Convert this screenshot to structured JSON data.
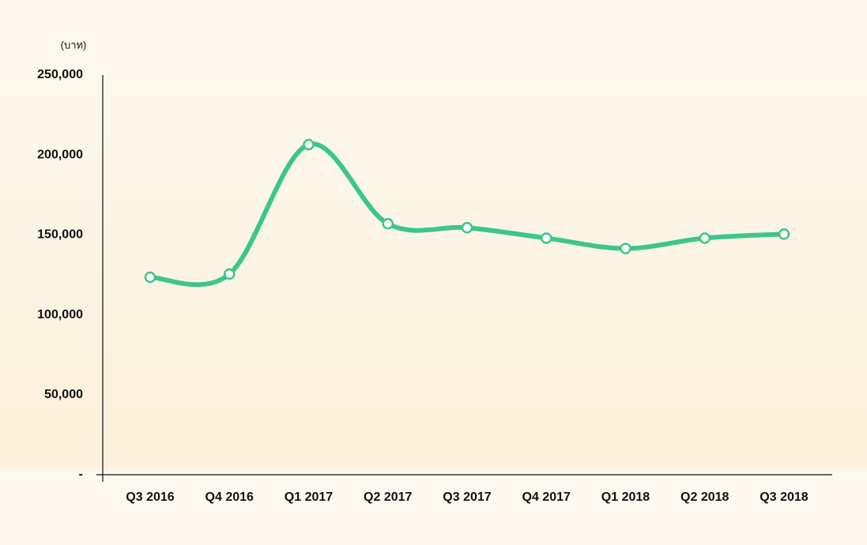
{
  "chart_data": {
    "type": "line",
    "unit_label": "(บาท)",
    "categories": [
      "Q3 2016",
      "Q4 2016",
      "Q1 2017",
      "Q2 2017",
      "Q3 2017",
      "Q4 2017",
      "Q1 2018",
      "Q2 2018",
      "Q3 2018"
    ],
    "series": [
      {
        "color": "#3cc68a",
        "values": [
          123500,
          125500,
          206500,
          157000,
          154500,
          148000,
          141500,
          148000,
          150500
        ]
      }
    ],
    "ylim": [
      0,
      250000
    ],
    "yticks": [
      {
        "value": 0,
        "label": "-"
      },
      {
        "value": 50000,
        "label": "50,000"
      },
      {
        "value": 100000,
        "label": "100,000"
      },
      {
        "value": 150000,
        "label": "150,000"
      },
      {
        "value": 200000,
        "label": "200,000"
      },
      {
        "value": 250000,
        "label": "250,000"
      }
    ],
    "grid": false
  }
}
